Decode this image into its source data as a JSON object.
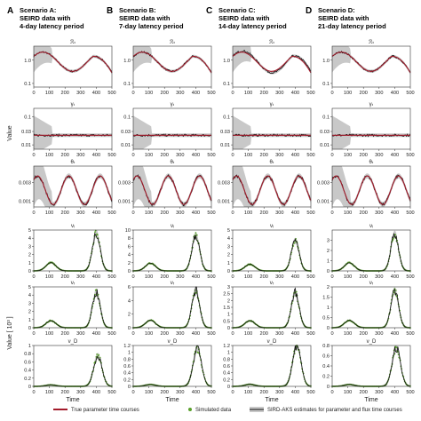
{
  "scenarios": [
    {
      "letter": "A",
      "title_line1": "Scenario A:",
      "title_line2": "SEIRD data with",
      "title_line3": "4-day latency period"
    },
    {
      "letter": "B",
      "title_line1": "Scenario B:",
      "title_line2": "SEIRD data with",
      "title_line3": "7-day latency period"
    },
    {
      "letter": "C",
      "title_line1": "Scenario C:",
      "title_line2": "SEIRD data with",
      "title_line3": "14-day latency period"
    },
    {
      "letter": "D",
      "title_line1": "Scenario D:",
      "title_line2": "SEIRD data with",
      "title_line3": "21-day latency period"
    }
  ],
  "y_label_top": "Value",
  "y_label_bottom": "Value [ 10³ ]",
  "x_label": "Time",
  "legend": {
    "true": "True parameter time courses",
    "sim": "Simulated data",
    "est": "SIRD-AKS estimates for parameter and flux time courses"
  },
  "colors": {
    "true": "#a31b2b",
    "sim": "#5aa02c",
    "est": "#111111",
    "band": "#c8c8c8"
  },
  "chart_data": {
    "type": "line",
    "x_ticks": [
      0,
      100,
      200,
      300,
      400,
      500
    ],
    "xlim": [
      0,
      500
    ],
    "rows": [
      {
        "title": "ℛₜ",
        "scale": "log",
        "ylim": [
          0.07,
          4
        ],
        "ticks": [
          0.1,
          1.0
        ],
        "tick_labels": [
          "0.1",
          "1.0"
        ],
        "kind": "R"
      },
      {
        "title": "γₜ",
        "scale": "log",
        "ylim": [
          0.007,
          0.2
        ],
        "ticks": [
          0.01,
          0.03,
          0.1
        ],
        "tick_labels": [
          "0.01",
          "0.03",
          "0.1"
        ],
        "kind": "g"
      },
      {
        "title": "θₜ",
        "scale": "log",
        "ylim": [
          0.0007,
          0.008
        ],
        "ticks": [
          0.001,
          0.003
        ],
        "tick_labels": [
          "0.001",
          "0.003"
        ],
        "kind": "th"
      },
      {
        "title": "νᵢ",
        "scale": "linear",
        "kind": "vI",
        "per_col": [
          {
            "ylim": [
              0,
              5
            ],
            "ticks": [
              0,
              1,
              2,
              3,
              4,
              5
            ],
            "peak": 4.6
          },
          {
            "ylim": [
              0,
              10
            ],
            "ticks": [
              0,
              2,
              4,
              6,
              8,
              10
            ],
            "peak": 8.6
          },
          {
            "ylim": [
              0,
              5
            ],
            "ticks": [
              0,
              1,
              2,
              3,
              4,
              5
            ],
            "peak": 3.7
          },
          {
            "ylim": [
              0,
              4
            ],
            "ticks": [
              0,
              1,
              2,
              3
            ],
            "peak": 3.6
          }
        ]
      },
      {
        "title": "νᵣ",
        "scale": "linear",
        "kind": "vR",
        "per_col": [
          {
            "ylim": [
              0,
              5
            ],
            "ticks": [
              0,
              1,
              2,
              3,
              4,
              5
            ],
            "peak": 4.3
          },
          {
            "ylim": [
              0,
              6
            ],
            "ticks": [
              0,
              2,
              4,
              6
            ],
            "peak": 5.5
          },
          {
            "ylim": [
              0,
              3
            ],
            "ticks": [
              0,
              0.5,
              1,
              1.5,
              2,
              2.5,
              3
            ],
            "peak": 2.6
          },
          {
            "ylim": [
              0,
              2
            ],
            "ticks": [
              0,
              0.5,
              1,
              1.5,
              2
            ],
            "peak": 1.8
          }
        ]
      },
      {
        "title": "ν_D",
        "scale": "linear",
        "kind": "vD",
        "per_col": [
          {
            "ylim": [
              0,
              1
            ],
            "ticks": [
              0,
              0.2,
              0.4,
              0.6,
              0.8,
              1
            ],
            "peak": 0.75
          },
          {
            "ylim": [
              0,
              1.2
            ],
            "ticks": [
              0,
              0.2,
              0.4,
              0.6,
              0.8,
              1,
              1.2
            ],
            "peak": 1.1
          },
          {
            "ylim": [
              0,
              1.2
            ],
            "ticks": [
              0,
              0.2,
              0.4,
              0.6,
              0.8,
              1,
              1.2
            ],
            "peak": 1.2
          },
          {
            "ylim": [
              0,
              0.8
            ],
            "ticks": [
              0,
              0.2,
              0.4,
              0.6,
              0.8
            ],
            "peak": 0.75
          }
        ]
      }
    ]
  }
}
